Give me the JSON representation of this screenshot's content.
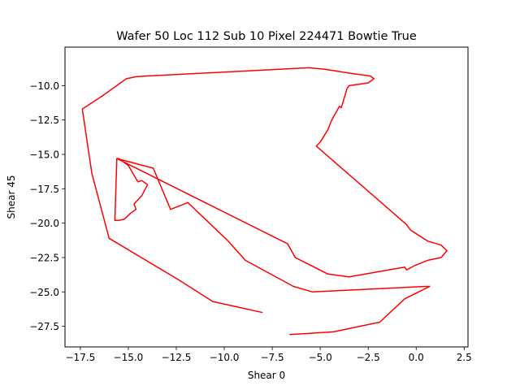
{
  "chart_data": {
    "type": "line",
    "title": "Wafer 50 Loc 112 Sub 10 Pixel 224471 Bowtie True",
    "xlabel": "Shear 0",
    "ylabel": "Shear 45",
    "xlim": [
      -18.3,
      2.7
    ],
    "ylim": [
      -29.0,
      -7.2
    ],
    "x_ticks": [
      -17.5,
      -15.0,
      -12.5,
      -10.0,
      -7.5,
      -5.0,
      -2.5,
      0.0,
      2.5
    ],
    "x_tick_labels": [
      "−17.5",
      "−15.0",
      "−12.5",
      "−10.0",
      "−7.5",
      "−5.0",
      "−2.5",
      "0.0",
      "2.5"
    ],
    "y_ticks": [
      -10.0,
      -12.5,
      -15.0,
      -17.5,
      -20.0,
      -22.5,
      -25.0,
      -27.5
    ],
    "y_tick_labels": [
      "−10.0",
      "−12.5",
      "−15.0",
      "−17.5",
      "−20.0",
      "−22.5",
      "−25.0",
      "−27.5"
    ],
    "grid": false,
    "series": [
      {
        "color": "#ff0000",
        "x": [
          -8.0,
          -10.6,
          -12.4,
          -16.0,
          -16.9,
          -17.4,
          -16.3,
          -15.1,
          -14.6,
          -14.0,
          -5.6,
          -4.8,
          -3.4,
          -2.4,
          -2.2,
          -2.5,
          -3.0,
          -3.5,
          -3.6,
          -3.9,
          -4.0,
          -4.4,
          -4.6,
          -5.0,
          -5.2,
          -0.5,
          -0.3,
          0.6,
          1.3,
          1.6,
          1.3,
          0.6,
          -0.1,
          -0.5,
          -0.6,
          -3.5,
          -4.6,
          -6.3,
          -6.7,
          -15.6,
          -15.5,
          -15.3,
          -15.6,
          -15.3,
          -15.0,
          -14.5,
          -14.3,
          -14.0,
          -14.3,
          -14.7,
          -14.6,
          -14.9,
          -15.2,
          -15.5,
          -15.7,
          -15.6,
          -13.7,
          -12.8,
          -11.9,
          -9.8,
          -8.9,
          -6.4,
          -5.4,
          0.5,
          0.7,
          -0.6,
          -1.9,
          -4.3,
          -6.6
        ],
        "y": [
          -26.5,
          -25.7,
          -24.1,
          -21.1,
          -16.4,
          -11.7,
          -10.7,
          -9.5,
          -9.35,
          -9.3,
          -8.7,
          -8.8,
          -9.1,
          -9.3,
          -9.5,
          -9.8,
          -9.9,
          -10.0,
          -10.2,
          -11.6,
          -11.5,
          -12.5,
          -13.2,
          -14.1,
          -14.4,
          -20.1,
          -20.5,
          -21.3,
          -21.6,
          -22.0,
          -22.5,
          -22.7,
          -23.1,
          -23.4,
          -23.2,
          -23.9,
          -23.7,
          -22.5,
          -21.5,
          -15.3,
          -15.3,
          -15.5,
          -15.3,
          -15.5,
          -15.8,
          -17.0,
          -16.9,
          -17.2,
          -18.0,
          -18.6,
          -19.0,
          -19.3,
          -19.7,
          -19.8,
          -19.8,
          -15.3,
          -16.0,
          -19.0,
          -18.5,
          -21.3,
          -22.7,
          -24.6,
          -25.0,
          -24.6,
          -24.6,
          -25.5,
          -27.2,
          -27.9,
          -28.1
        ]
      }
    ]
  }
}
